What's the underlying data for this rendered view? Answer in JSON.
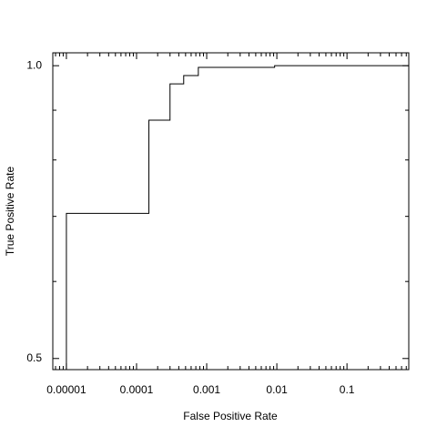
{
  "chart_data": {
    "type": "line",
    "xlabel": "False Positive Rate",
    "ylabel": "True Positive Rate",
    "xscale": "log",
    "yscale": "log",
    "color": "#000000",
    "xlim": [
      6.4e-06,
      0.76
    ],
    "ylim": [
      0.487,
      1.031
    ],
    "xticks": [
      {
        "value": 1e-05,
        "label": "0.00001"
      },
      {
        "value": 0.0001,
        "label": "0.0001"
      },
      {
        "value": 0.001,
        "label": "0.001"
      },
      {
        "value": 0.01,
        "label": "0.01"
      },
      {
        "value": 0.1,
        "label": "0.1"
      }
    ],
    "yticks": [
      {
        "value": 1,
        "label": "1.0"
      },
      0.5
    ],
    "xminor_ticks": [
      7e-06,
      8e-06,
      9e-06,
      2e-05,
      3e-05,
      4e-05,
      5e-05,
      6e-05,
      7e-05,
      8e-05,
      9e-05,
      0.0002,
      0.0003,
      0.0004,
      0.0005,
      0.0006,
      0.0007,
      0.0008,
      0.0009,
      0.002,
      0.003,
      0.004,
      0.005,
      0.006,
      0.007,
      0.008,
      0.009,
      0.02,
      0.03,
      0.04,
      0.05,
      0.06,
      0.07,
      0.08,
      0.09,
      0.2,
      0.3,
      0.4,
      0.5,
      0.6,
      0.7
    ],
    "yminor_ticks": [
      0.6,
      0.7,
      0.8,
      0.9
    ],
    "series": [
      {
        "x": [
          1e-05,
          1e-05,
          0.00015,
          0.00015,
          0.0003,
          0.0003,
          0.00047,
          0.00047,
          0.00076,
          0.00076,
          0.0093,
          0.0093,
          0.76
        ],
        "values": [
          0.487,
          0.705,
          0.705,
          0.879,
          0.879,
          0.958,
          0.958,
          0.977,
          0.977,
          0.996,
          0.996,
          1.0,
          1.0
        ]
      }
    ]
  }
}
